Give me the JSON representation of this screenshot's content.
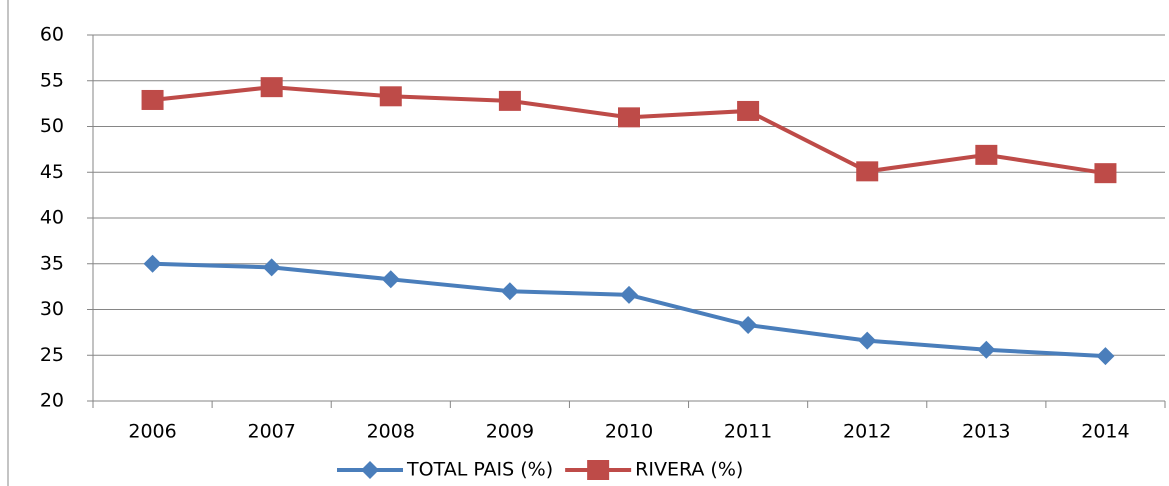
{
  "chart_data": {
    "type": "line",
    "categories": [
      "2006",
      "2007",
      "2008",
      "2009",
      "2010",
      "2011",
      "2012",
      "2013",
      "2014"
    ],
    "series": [
      {
        "name": "TOTAL PAIS  (%)",
        "color": "#4a7ebb",
        "marker": "diamond",
        "values": [
          35.0,
          34.6,
          33.3,
          32.0,
          31.6,
          28.3,
          26.6,
          25.6,
          24.9
        ]
      },
      {
        "name": "RIVERA  (%)",
        "color": "#be4b48",
        "marker": "square",
        "values": [
          52.9,
          54.3,
          53.3,
          52.8,
          51.0,
          51.7,
          45.1,
          46.9,
          44.9
        ]
      }
    ],
    "ylim": [
      20,
      60
    ],
    "yticks": [
      20,
      25,
      30,
      35,
      40,
      45,
      50,
      55,
      60
    ],
    "grid": true,
    "legend": "bottom"
  }
}
